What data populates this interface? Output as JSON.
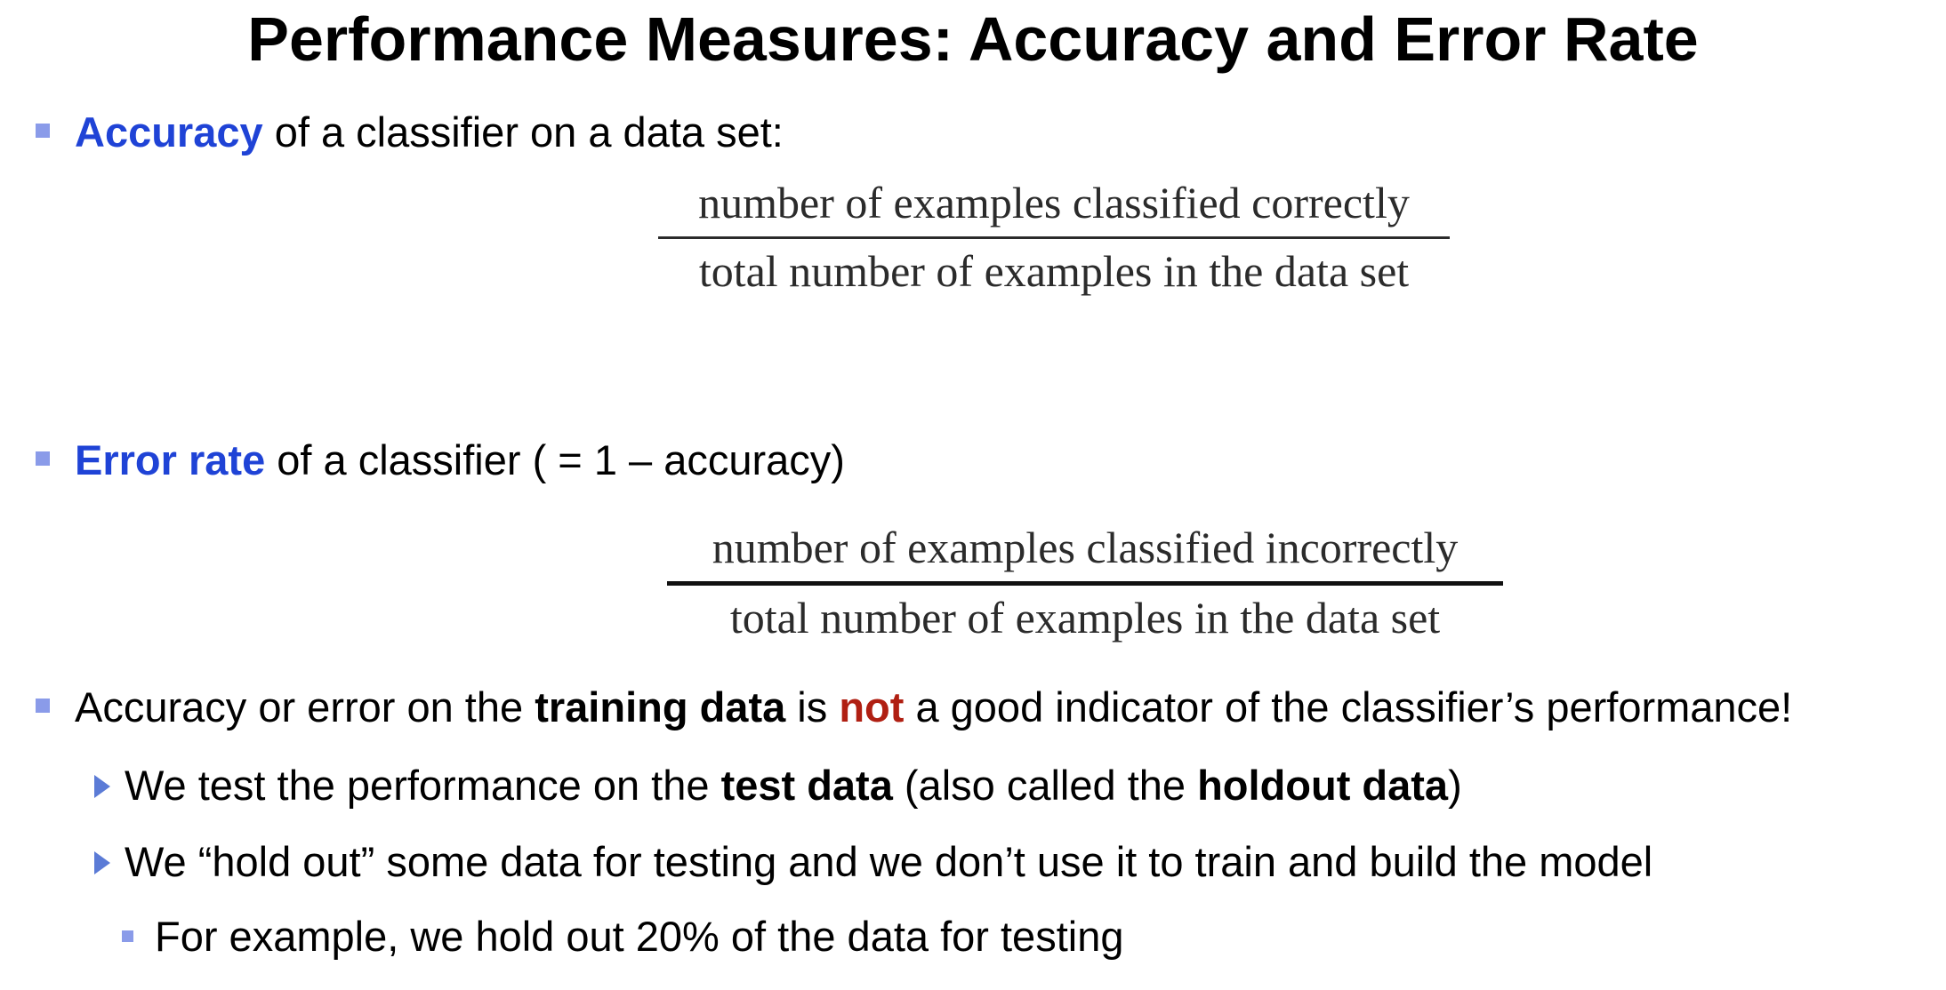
{
  "title": "Performance Measures: Accuracy and Error Rate",
  "bullet1": {
    "term": "Accuracy",
    "rest": " of a classifier on a data set:"
  },
  "formula1": {
    "numerator": "number of examples classified correctly",
    "denominator": "total number of examples in the data set"
  },
  "bullet2": {
    "term": "Error rate",
    "rest": " of a classifier ( = 1 – accuracy)"
  },
  "formula2": {
    "numerator": "number of examples classified incorrectly",
    "denominator": "total number of examples in the data set"
  },
  "bullet3": {
    "part1": "Accuracy or error on the ",
    "bold1": "training data",
    "part2": " is ",
    "red": "not",
    "part3": " a good indicator of the classifier’s performance!"
  },
  "sub1": {
    "part1": "We test the performance on the ",
    "bold1": "test data",
    "part2": " (also called the ",
    "bold2": "holdout data",
    "part3": ")"
  },
  "sub2": {
    "text": "We “hold out” some data for testing and we don’t use it to train and build the model"
  },
  "subsub1": {
    "text": "For example, we hold out 20% of the data for testing"
  },
  "colors": {
    "term_blue": "#1f43d6",
    "not_red": "#b01f12",
    "bullet_square": "#8a9be9",
    "bullet_triangle": "#5b7bd6"
  },
  "icons": {
    "level1": "square-bullet-icon",
    "level2": "triangle-bullet-icon",
    "level3": "square-bullet-icon"
  }
}
